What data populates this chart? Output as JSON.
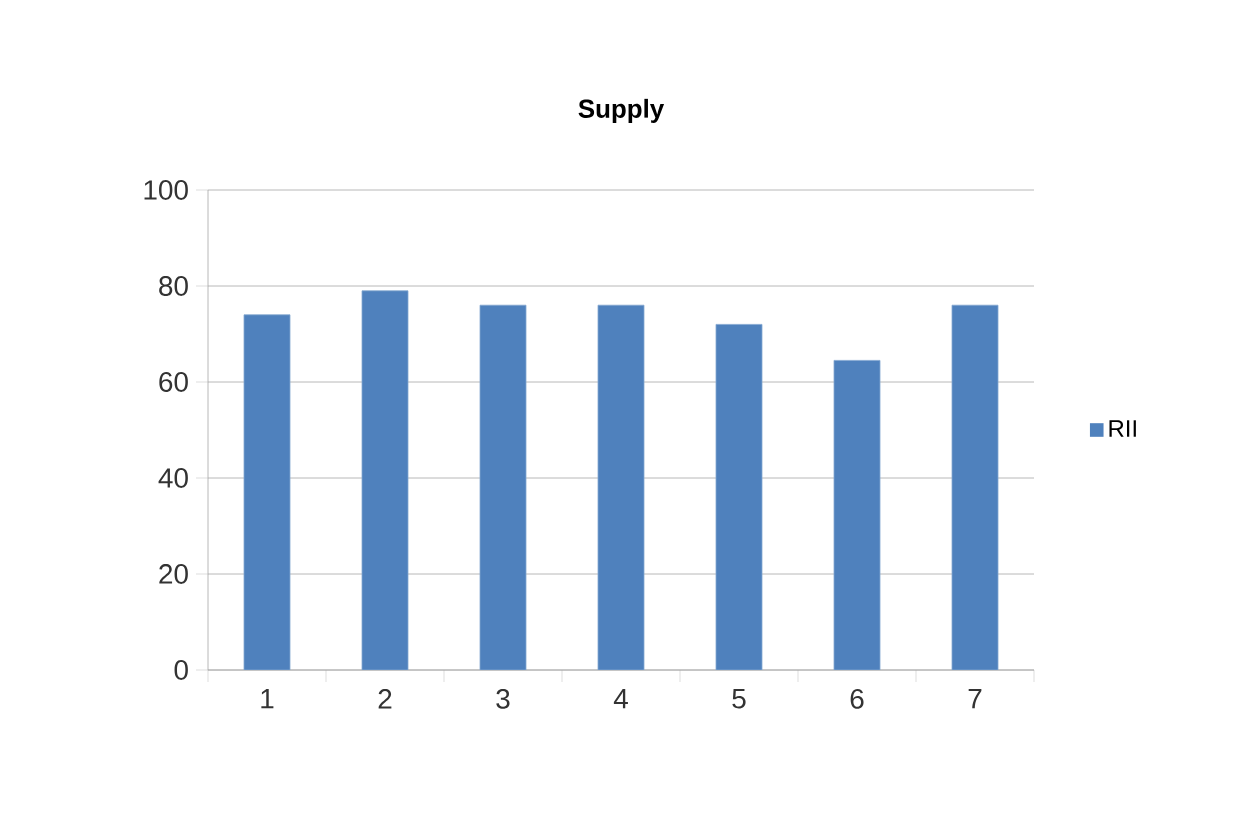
{
  "chart_data": {
    "type": "bar",
    "title": "**Supply**",
    "categories": [
      "1",
      "2",
      "3",
      "4",
      "5",
      "6",
      "7"
    ],
    "series": [
      {
        "name": "RII",
        "color": "#4f81bd",
        "values": [
          74,
          79,
          76,
          76,
          72,
          64.5,
          76
        ]
      }
    ],
    "ylim": [
      0,
      100
    ],
    "yticks": [
      0,
      20,
      40,
      60,
      80,
      100
    ],
    "grid": "y",
    "legend": "right"
  }
}
